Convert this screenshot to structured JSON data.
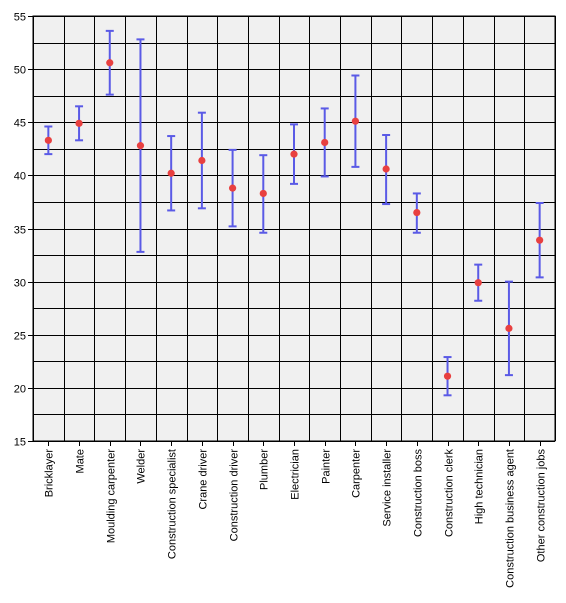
{
  "chart_data": {
    "type": "errorbar",
    "title": "",
    "xlabel": "",
    "ylabel": "",
    "ylim": [
      15,
      55
    ],
    "yticks": [
      15,
      20,
      25,
      30,
      35,
      40,
      45,
      50,
      55
    ],
    "grid": true,
    "categories": [
      "Bricklayer",
      "Mate",
      "Moulding carpenter",
      "Welder",
      "Construction specialist",
      "Crane driver",
      "Construction driver",
      "Plumber",
      "Electrician",
      "Painter",
      "Carpenter",
      "Service installer",
      "Construction boss",
      "Construction clerk",
      "High technician",
      "Construction business agent",
      "Other construction jobs"
    ],
    "means": [
      43.3,
      44.9,
      50.6,
      42.8,
      40.2,
      41.4,
      38.8,
      38.3,
      42.0,
      43.1,
      45.1,
      40.6,
      36.5,
      21.1,
      29.9,
      25.6,
      33.9
    ],
    "lower": [
      42.0,
      43.3,
      47.6,
      32.8,
      36.7,
      36.9,
      35.2,
      34.6,
      39.2,
      39.9,
      40.8,
      37.3,
      34.6,
      19.3,
      28.2,
      21.2,
      30.4
    ],
    "upper": [
      44.6,
      46.5,
      53.6,
      52.8,
      43.7,
      45.9,
      42.4,
      41.9,
      44.8,
      46.3,
      49.4,
      43.8,
      38.3,
      22.9,
      31.6,
      30.0,
      37.4
    ],
    "colors": {
      "background": "#f0f0f0",
      "grid": "#000000",
      "errorbar": "#5a5ae6",
      "marker": "#e84040"
    }
  }
}
